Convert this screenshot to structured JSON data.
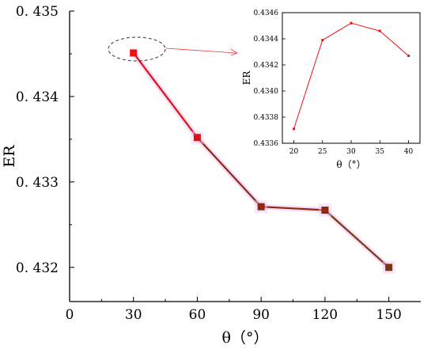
{
  "chart_data": [
    {
      "type": "line",
      "xlabel": "θ（°）",
      "ylabel": "ER",
      "xlim": [
        0,
        165
      ],
      "ylim": [
        0.4316,
        0.435
      ],
      "xticks": [
        0,
        30,
        60,
        90,
        120,
        150
      ],
      "xtick_labels": [
        "0",
        "30",
        "60",
        "90",
        "120",
        "150"
      ],
      "yticks": [
        0.432,
        0.433,
        0.434,
        0.435
      ],
      "ytick_labels": [
        "0. 432",
        "0. 433",
        "0. 434",
        "0. 435"
      ],
      "series": [
        {
          "x": [
            30,
            60,
            90,
            120,
            150
          ],
          "y": [
            0.43451,
            0.43352,
            0.43271,
            0.43267,
            0.432
          ],
          "colors": [
            "#ee1111",
            "#dd1111",
            "#8b2a10",
            "#8b2a10",
            "#7a3a10"
          ]
        }
      ]
    },
    {
      "type": "line",
      "xlabel": "θ（°）",
      "ylabel": "ER",
      "xlim": [
        18,
        42
      ],
      "ylim": [
        0.4336,
        0.4346
      ],
      "xticks": [
        20,
        25,
        30,
        35,
        40
      ],
      "xtick_labels": [
        "20",
        "25",
        "30",
        "35",
        "40"
      ],
      "yticks": [
        0.4336,
        0.4338,
        0.434,
        0.4342,
        0.4344,
        0.4346
      ],
      "ytick_labels": [
        "0.4336",
        "0.4338",
        "0.4340",
        "0.4342",
        "0.4344",
        "0.4346"
      ],
      "series": [
        {
          "x": [
            20,
            25,
            30,
            35,
            40
          ],
          "y": [
            0.43371,
            0.43439,
            0.43452,
            0.43446,
            0.43427
          ],
          "color": "#ee1111"
        }
      ]
    }
  ],
  "colors": {
    "line": "#ee1111",
    "marker_pink_halo": "#f3c4f3",
    "axis": "#000000",
    "callout": "#333333",
    "arrow": "#ee3333"
  }
}
